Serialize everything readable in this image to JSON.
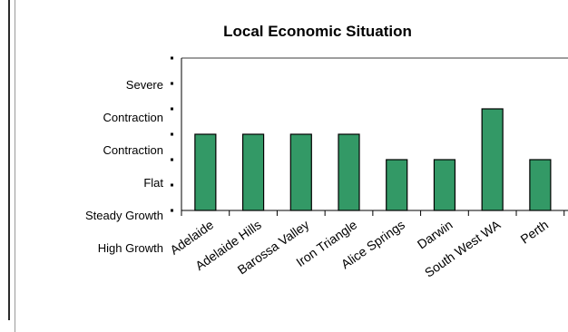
{
  "chart_data": {
    "type": "bar",
    "title": "Local Economic Situation",
    "categories": [
      "Adelaide",
      "Adelaide Hills",
      "Barossa Valley",
      "Iron Triangle",
      "Alice Springs",
      "Darwin",
      "South West WA",
      "Perth"
    ],
    "values": [
      3,
      3,
      3,
      3,
      2,
      2,
      4,
      2
    ],
    "y_tick_labels": [
      "High Growth",
      "Steady Growth",
      "Flat",
      "Contraction",
      "Contraction",
      "Severe"
    ],
    "ylim": [
      0,
      6
    ],
    "bar_color": "#339966",
    "grid": false,
    "legend": "none"
  }
}
